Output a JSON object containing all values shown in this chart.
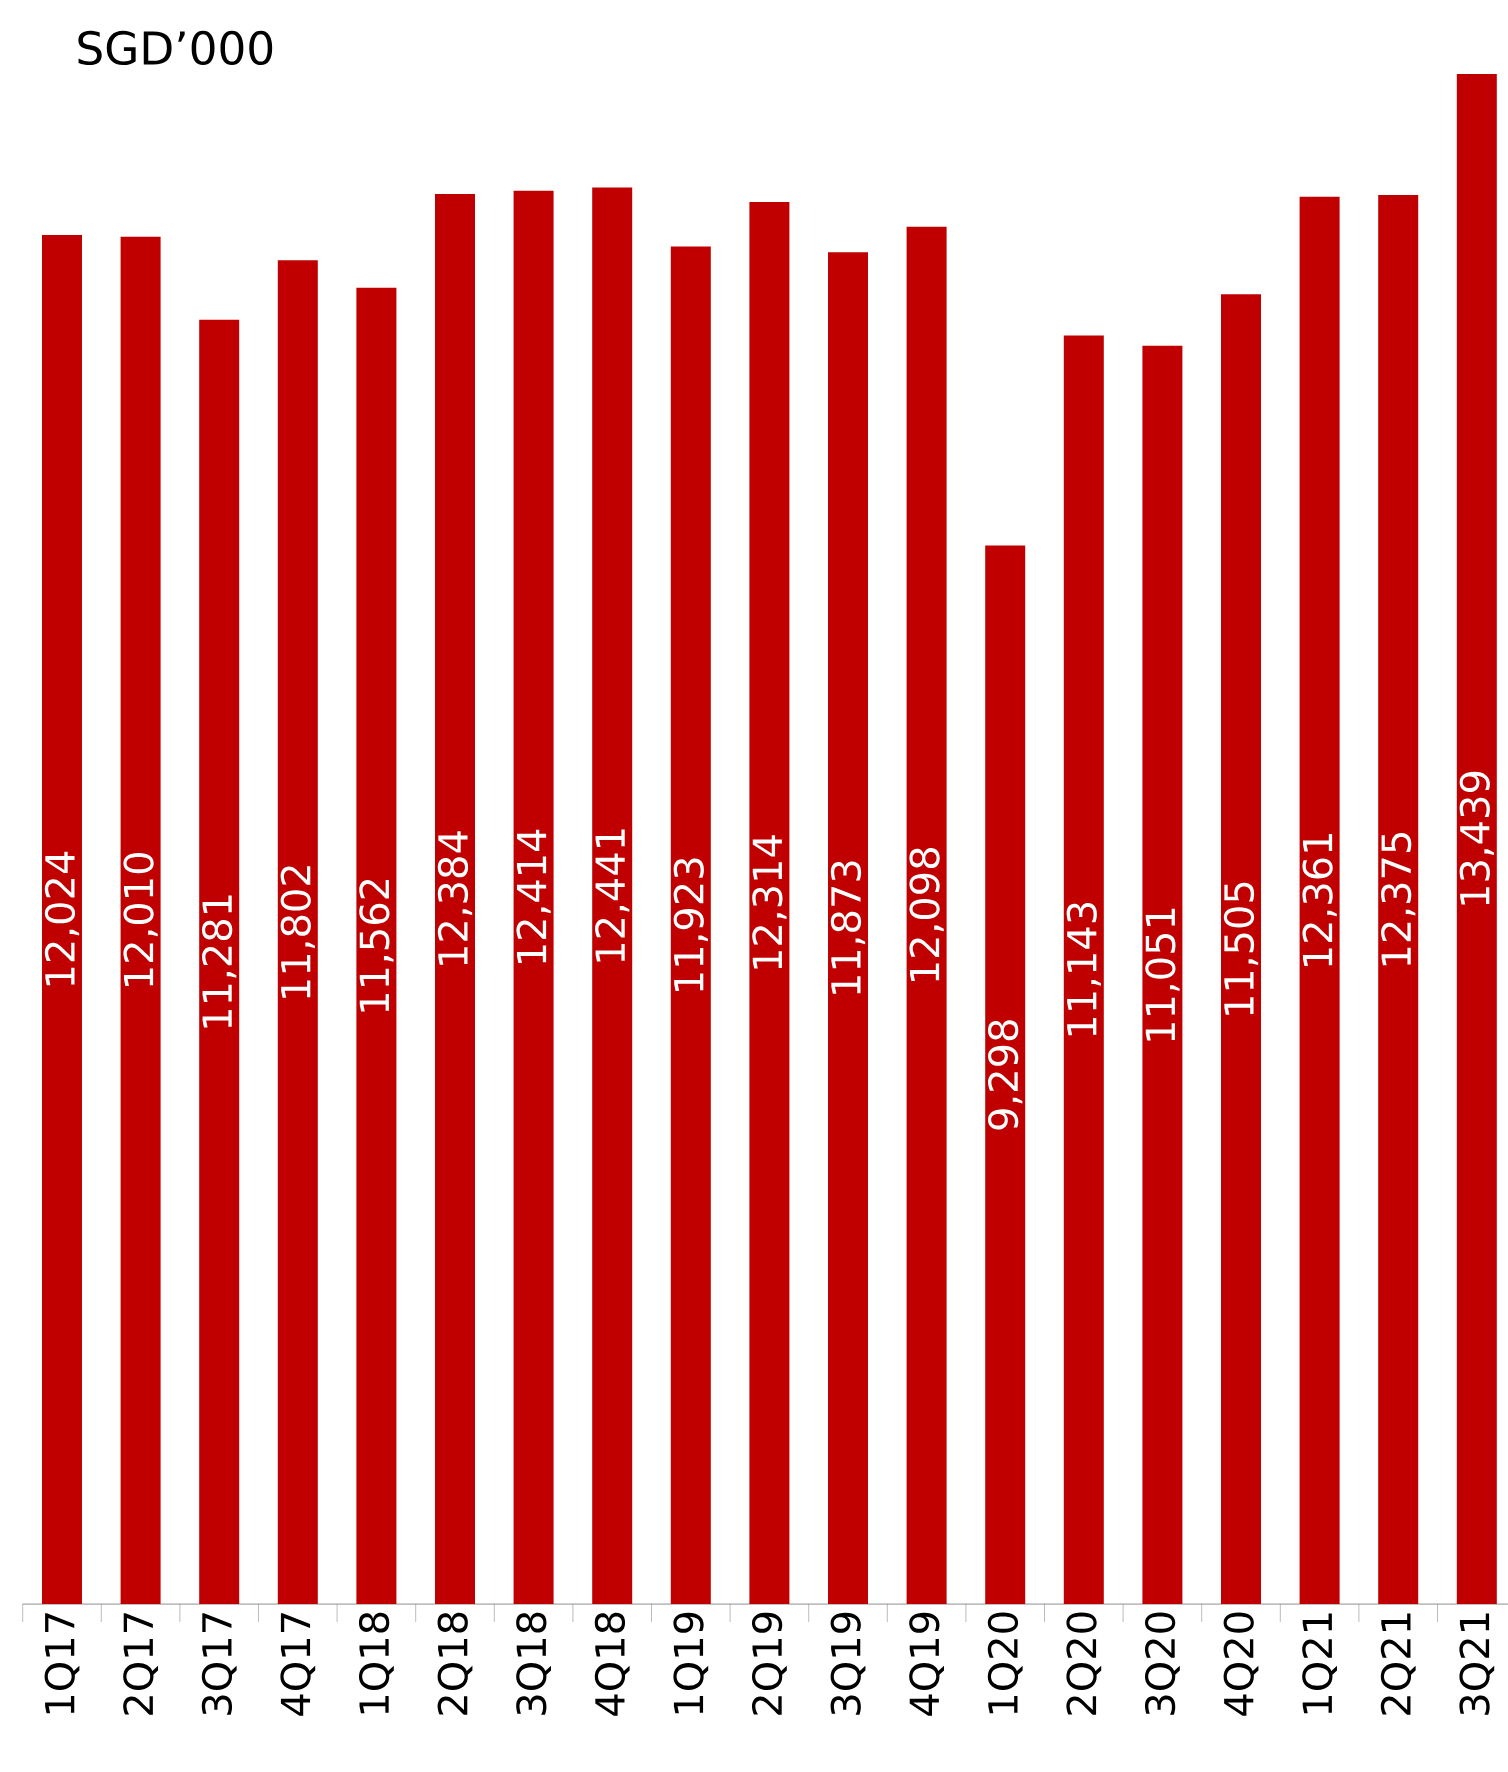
{
  "chart_data": {
    "type": "bar",
    "title": "SGD’000",
    "categories": [
      "1Q17",
      "2Q17",
      "3Q17",
      "4Q17",
      "1Q18",
      "2Q18",
      "3Q18",
      "4Q18",
      "1Q19",
      "2Q19",
      "3Q19",
      "4Q19",
      "1Q20",
      "2Q20",
      "3Q20",
      "4Q20",
      "1Q21",
      "2Q21",
      "3Q21"
    ],
    "values": [
      12024,
      12010,
      11281,
      11802,
      11562,
      12384,
      12414,
      12441,
      11923,
      12314,
      11873,
      12098,
      9298,
      11143,
      11051,
      11505,
      12361,
      12375,
      13439
    ],
    "value_labels": [
      "12,024",
      "12,010",
      "11,281",
      "11,802",
      "11,562",
      "12,384",
      "12,414",
      "12,441",
      "11,923",
      "12,314",
      "11,873",
      "12,098",
      "9,298",
      "11,143",
      "11,051",
      "11,505",
      "12,361",
      "12,375",
      "13,439"
    ],
    "color": "#c00000"
  }
}
